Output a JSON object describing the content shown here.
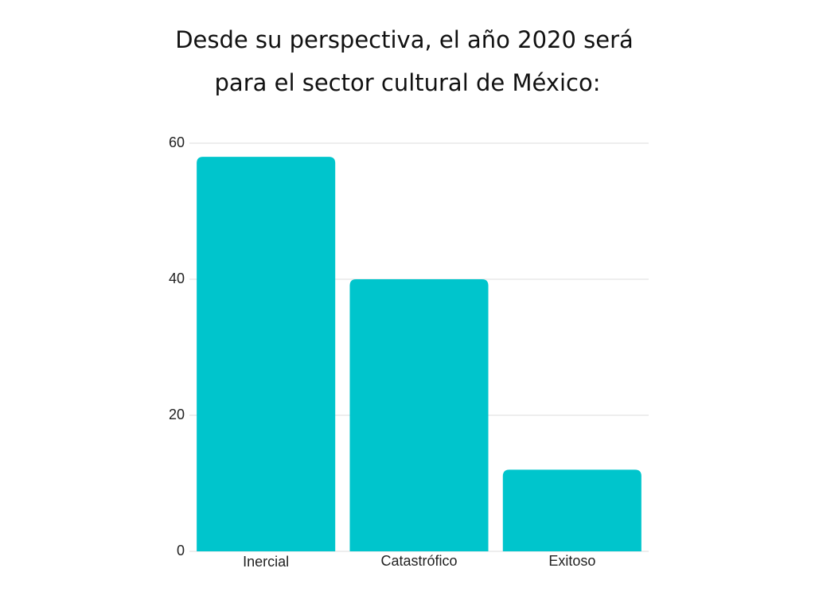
{
  "chart_data": {
    "type": "bar",
    "title": [
      "Desde su perspectiva, el año 2020 será",
      "para el sector cultural de México:"
    ],
    "categories": [
      "Inercial",
      "Catastrófico",
      "Exitoso"
    ],
    "values": [
      58,
      40,
      12
    ],
    "color": "#00c5cc",
    "ylim": [
      0,
      60
    ],
    "yticks": [
      0,
      20,
      40,
      60
    ],
    "grid": true
  }
}
